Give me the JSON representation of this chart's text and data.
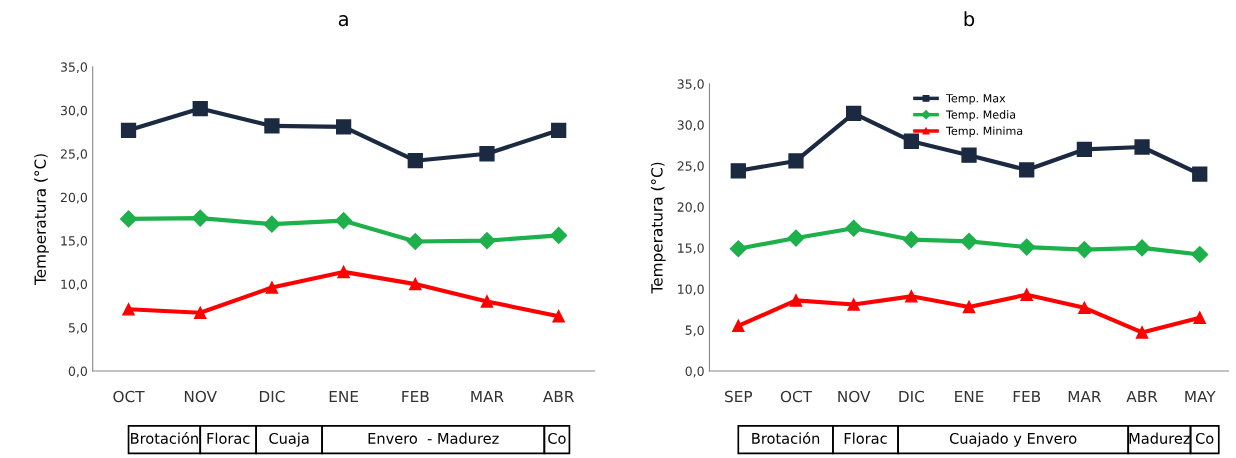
{
  "chart_data": [
    {
      "type": "line",
      "title": "a",
      "ylabel": "Temperatura (°C)",
      "categories": [
        "OCT",
        "NOV",
        "DIC",
        "ENE",
        "FEB",
        "MAR",
        "ABR"
      ],
      "ylim": [
        0,
        35
      ],
      "yticks": [
        {
          "value": 0,
          "label": "0,0"
        },
        {
          "value": 5,
          "label": "5,0"
        },
        {
          "value": 10,
          "label": "10,0"
        },
        {
          "value": 15,
          "label": "15,0"
        },
        {
          "value": 20,
          "label": "20,0"
        },
        {
          "value": 25,
          "label": "25,0"
        },
        {
          "value": 30,
          "label": "30,0"
        },
        {
          "value": 35,
          "label": "35,0"
        }
      ],
      "grid": false,
      "legend": false,
      "series": [
        {
          "color": "#1b2a41",
          "marker": "square",
          "values": [
            27.7,
            30.2,
            28.2,
            28.1,
            24.2,
            25.0,
            27.7
          ]
        },
        {
          "color": "#1db04b",
          "marker": "diamond",
          "values": [
            17.5,
            17.6,
            16.9,
            17.3,
            14.9,
            15.0,
            15.6
          ]
        },
        {
          "color": "#ff0000",
          "marker": "triangle",
          "values": [
            7.1,
            6.7,
            9.6,
            11.4,
            10.0,
            8.0,
            6.3
          ]
        }
      ],
      "annotations": [
        "Brotación",
        "Florac",
        "Cuaja",
        "Envero  - Madurez",
        "Co"
      ]
    },
    {
      "type": "line",
      "title": "b",
      "ylabel": "Temperatura (°C)",
      "categories": [
        "SEP",
        "OCT",
        "NOV",
        "DIC",
        "ENE",
        "FEB",
        "MAR",
        "ABR",
        "MAY"
      ],
      "ylim": [
        0,
        35
      ],
      "yticks": [
        {
          "value": 0,
          "label": "0,0"
        },
        {
          "value": 5,
          "label": "5,0"
        },
        {
          "value": 10,
          "label": "10,0"
        },
        {
          "value": 15,
          "label": "15,0"
        },
        {
          "value": 20,
          "label": "20,0"
        },
        {
          "value": 25,
          "label": "25,0"
        },
        {
          "value": 30,
          "label": "30,0"
        },
        {
          "value": 35,
          "label": "35,0"
        }
      ],
      "grid": false,
      "legend": "top",
      "series": [
        {
          "name": "Temp. Max",
          "color": "#1b2a41",
          "marker": "square",
          "values": [
            24.4,
            25.6,
            31.4,
            28.0,
            26.3,
            24.5,
            27.0,
            27.3,
            24.0
          ]
        },
        {
          "name": "Temp. Media",
          "color": "#1db04b",
          "marker": "diamond",
          "values": [
            14.9,
            16.2,
            17.4,
            16.0,
            15.8,
            15.1,
            14.8,
            15.0,
            14.2
          ]
        },
        {
          "name": "Temp. Minima",
          "color": "#ff0000",
          "marker": "triangle",
          "values": [
            5.5,
            8.6,
            8.1,
            9.1,
            7.8,
            9.3,
            7.7,
            4.7,
            6.5
          ]
        }
      ],
      "annotations": [
        "Brotación",
        "Florac",
        "Cuajado y Envero",
        "Madurez",
        "Co"
      ]
    }
  ]
}
